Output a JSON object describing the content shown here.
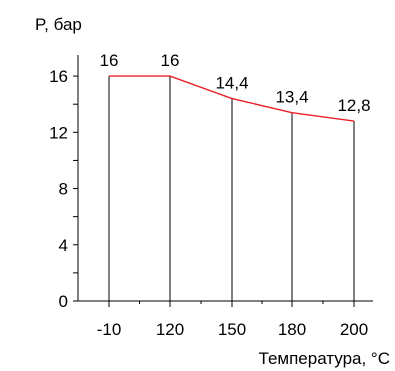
{
  "chart_data": {
    "type": "area",
    "ylabel": "P, бар",
    "xlabel": "Температура, °C",
    "categories": [
      "-10",
      "120",
      "150",
      "180",
      "200"
    ],
    "values": [
      16,
      16,
      14.4,
      13.4,
      12.8
    ],
    "data_labels": [
      "16",
      "16",
      "14,4",
      "13,4",
      "12,8"
    ],
    "y_ticks": [
      0,
      4,
      8,
      12,
      16
    ],
    "y_tick_labels": [
      "0",
      "4",
      "8",
      "12",
      "16"
    ],
    "ylim": [
      0,
      17.5
    ],
    "grid": false,
    "line_color": "#e8202a",
    "axis_color": "#000000"
  }
}
